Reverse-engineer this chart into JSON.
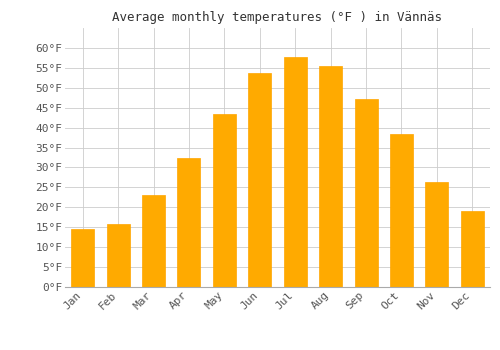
{
  "title": "Average monthly temperatures (°F ) in Vännäs",
  "months": [
    "Jan",
    "Feb",
    "Mar",
    "Apr",
    "May",
    "Jun",
    "Jul",
    "Aug",
    "Sep",
    "Oct",
    "Nov",
    "Dec"
  ],
  "values": [
    14.5,
    15.8,
    23.0,
    32.5,
    43.5,
    53.8,
    57.8,
    55.4,
    47.3,
    38.3,
    26.4,
    19.0
  ],
  "bar_color": "#FFAA00",
  "bar_edge_color": "#FFA500",
  "background_color": "#ffffff",
  "grid_color": "#cccccc",
  "ylim": [
    0,
    65
  ],
  "yticks": [
    0,
    5,
    10,
    15,
    20,
    25,
    30,
    35,
    40,
    45,
    50,
    55,
    60
  ],
  "ytick_labels": [
    "0°F",
    "5°F",
    "10°F",
    "15°F",
    "20°F",
    "25°F",
    "30°F",
    "35°F",
    "40°F",
    "45°F",
    "50°F",
    "55°F",
    "60°F"
  ],
  "title_fontsize": 9,
  "tick_fontsize": 8,
  "font_family": "monospace"
}
